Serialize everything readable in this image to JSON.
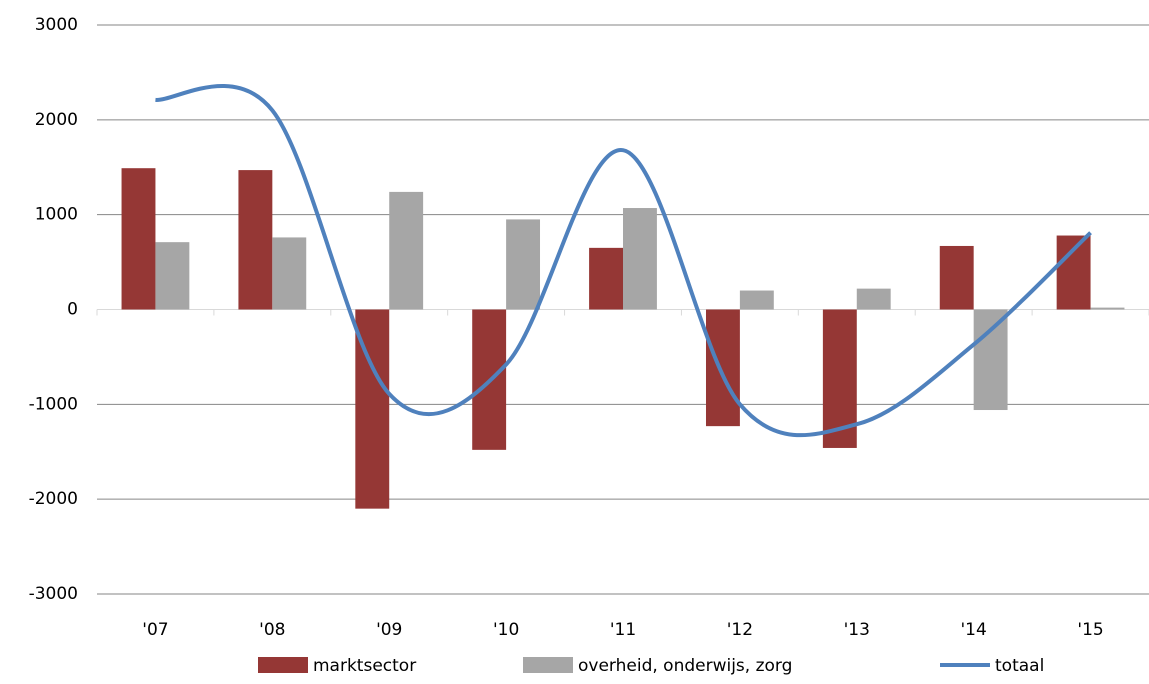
{
  "chart_data": {
    "type": "bar-line",
    "categories": [
      "'07",
      "'08",
      "'09",
      "'10",
      "'11",
      "'12",
      "'13",
      "'14",
      "'15"
    ],
    "series": [
      {
        "name": "marktsector",
        "type": "bar",
        "color": "#953735",
        "values": [
          1490,
          1470,
          -2100,
          -1480,
          650,
          -1230,
          -1460,
          670,
          780
        ]
      },
      {
        "name": "overheid, onderwijs, zorg",
        "type": "bar",
        "color": "#a6a6a6",
        "values": [
          710,
          760,
          1240,
          950,
          1070,
          200,
          220,
          -1060,
          20
        ]
      },
      {
        "name": "totaal",
        "type": "line",
        "color": "#4f81bd",
        "values": [
          2210,
          2100,
          -890,
          -580,
          1680,
          -1000,
          -1210,
          -370,
          810
        ]
      }
    ],
    "ylim": [
      -3000,
      3000
    ],
    "yticks": [
      -3000,
      -2000,
      -1000,
      0,
      1000,
      2000,
      3000
    ],
    "grid": true,
    "legend": "bottom"
  }
}
